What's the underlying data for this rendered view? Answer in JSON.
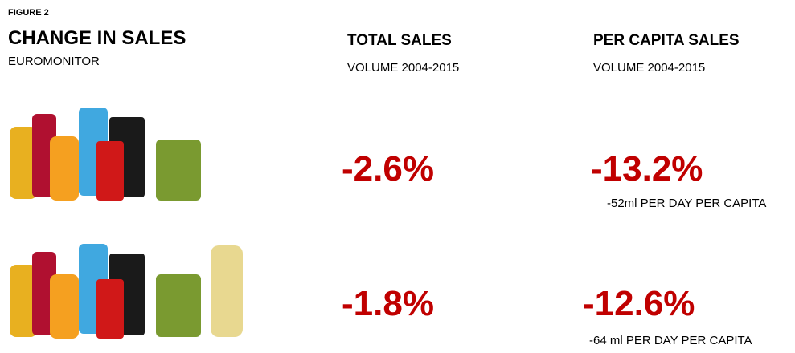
{
  "header": {
    "figure": "FIGURE 2",
    "title": "CHANGE IN SALES",
    "source": "EUROMONITOR"
  },
  "columns": [
    {
      "title": "TOTAL SALES",
      "subtitle": "VOLUME 2004-2015"
    },
    {
      "title": "PER CAPITA SALES",
      "subtitle": "VOLUME 2004-2015"
    }
  ],
  "rows": [
    {
      "total": "-2.6%",
      "per_capita": "-13.2%",
      "note": "-52ml PER DAY PER CAPITA"
    },
    {
      "total": "-1.8%",
      "per_capita": "-12.6%",
      "note": "-64 ml PER DAY PER CAPITA"
    }
  ]
}
